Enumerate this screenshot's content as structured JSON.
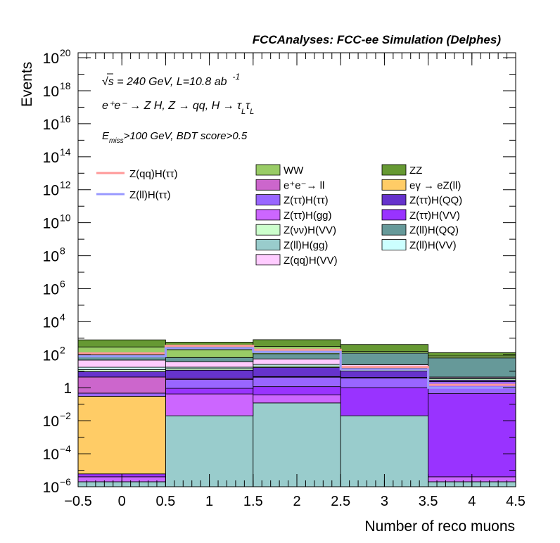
{
  "chart_data": {
    "type": "bar",
    "title": "FCCAnalyses: FCC-ee Simulation (Delphes)",
    "xlabel": "Number of reco muons",
    "ylabel": "Events",
    "xlim": [
      -0.5,
      4.5
    ],
    "ylim": [
      1e-06,
      2e+20
    ],
    "log_y": true,
    "grid": false,
    "bins": [
      -0.5,
      0.5,
      1.5,
      2.5,
      3.5,
      4.5
    ],
    "x_ticks": [
      "−0.5",
      "0",
      "0.5",
      "1",
      "1.5",
      "2",
      "2.5",
      "3",
      "3.5",
      "4",
      "4.5"
    ],
    "y_ticks": [
      {
        "base": "10",
        "exp": "−6",
        "value": 1e-06
      },
      {
        "base": "10",
        "exp": "−4",
        "value": 0.0001
      },
      {
        "base": "10",
        "exp": "−2",
        "value": 0.01
      },
      {
        "base": "1",
        "exp": "",
        "value": 1
      },
      {
        "base": "10",
        "exp": "2",
        "value": 100.0
      },
      {
        "base": "10",
        "exp": "4",
        "value": 10000.0
      },
      {
        "base": "10",
        "exp": "6",
        "value": 1000000.0
      },
      {
        "base": "10",
        "exp": "8",
        "value": 100000000.0
      },
      {
        "base": "10",
        "exp": "10",
        "value": 10000000000.0
      },
      {
        "base": "10",
        "exp": "12",
        "value": 1000000000000.0
      },
      {
        "base": "10",
        "exp": "14",
        "value": 100000000000000.0
      },
      {
        "base": "10",
        "exp": "16",
        "value": 1e+16
      },
      {
        "base": "10",
        "exp": "18",
        "value": 1e+18
      },
      {
        "base": "10",
        "exp": "20",
        "value": 1e+20
      }
    ],
    "annotations": {
      "energy": "√s = 240 GeV, L=10.8 ab",
      "energy_sup": "-1",
      "process_main": "e⁺e⁻ → Z H, Z → qq, H → τ",
      "process_sub_l": "L",
      "cut_e": "E",
      "cut_sub": "miss",
      "cut_rest": ">100 GeV, BDT score>0.5"
    },
    "stack_order_bottom_to_top": [
      "Z(ll)H(gg)",
      "Z(ττ)H(gg)",
      "Z(ττ)H(VV)",
      "eγ → eZ(ll)",
      "Z(ττ)H(ττ)",
      "e⁺e⁻→ ll",
      "Z(ττ)H(QQ)",
      "Z(νν)H(VV)",
      "Z(ll)H(VV)",
      "Z(qq)H(VV)",
      "Z(ll)H(QQ)",
      "WW",
      "ZZ"
    ],
    "stacked_series": [
      {
        "name": "Z(ll)H(gg)",
        "color": "#99cccc",
        "values": [
          2e-06,
          0.02,
          0.12,
          0.02,
          2e-06
        ]
      },
      {
        "name": "Z(ττ)H(gg)",
        "color": "#cc66ff",
        "values": [
          2e-06,
          0.4,
          0.25,
          2e-06,
          2e-06
        ]
      },
      {
        "name": "Z(ττ)H(VV)",
        "color": "#9933ff",
        "values": [
          2e-06,
          0.5,
          0.8,
          1.0,
          0.44
        ]
      },
      {
        "name": "eγ → eZ(ll)",
        "color": "#ffcc66",
        "values": [
          0.3,
          2e-06,
          2e-06,
          2e-06,
          2e-06
        ]
      },
      {
        "name": "Z(ττ)H(ττ)",
        "color": "#9966ff",
        "values": [
          0.17,
          2.3,
          3.2,
          2.9,
          1.9
        ]
      },
      {
        "name": "e⁺e⁻→ ll",
        "color": "#cc66cc",
        "values": [
          4.0,
          0.4,
          0.4,
          0.3,
          0.0
        ]
      },
      {
        "name": "Z(ττ)H(QQ)",
        "color": "#6633cc",
        "values": [
          5.0,
          8.0,
          12.0,
          6.0,
          0.5
        ]
      },
      {
        "name": "Z(νν)H(VV)",
        "color": "#ccffcc",
        "values": [
          3.0,
          3.0,
          4.0,
          2.0,
          0.6
        ]
      },
      {
        "name": "Z(ll)H(VV)",
        "color": "#ccffff",
        "values": [
          5.0,
          3.0,
          5.0,
          3.0,
          0.5
        ]
      },
      {
        "name": "Z(qq)H(VV)",
        "color": "#ffccff",
        "values": [
          30.0,
          20.0,
          30.0,
          10.0,
          0.5
        ]
      },
      {
        "name": "Z(ll)H(QQ)",
        "color": "#669999",
        "values": [
          50.0,
          30.0,
          60.0,
          100.0,
          60.0
        ]
      },
      {
        "name": "WW",
        "color": "#99cc66",
        "values": [
          200.0,
          130.0,
          200.0,
          35.0,
          20.0
        ]
      },
      {
        "name": "ZZ",
        "color": "#669933",
        "values": [
          500.0,
          380.0,
          500.0,
          260.0,
          50.0
        ]
      }
    ],
    "signal_lines": [
      {
        "name": "Z(qq)H(ττ)",
        "color": "#ff9999",
        "values": [
          120,
          350,
          200,
          18,
          1.5
        ]
      },
      {
        "name": "Z(ll)H(ττ)",
        "color": "#9999ff",
        "values": [
          80,
          250,
          150,
          13,
          1.0
        ]
      }
    ],
    "legend": {
      "placement": "upper-middle",
      "left_column": [
        "Z(qq)H(ττ)",
        "Z(ll)H(ττ)"
      ],
      "mid_column": [
        "WW",
        "e⁺e⁻→ ll",
        "Z(ττ)H(ττ)",
        "Z(ττ)H(gg)",
        "Z(νν)H(VV)",
        "Z(ll)H(gg)",
        "Z(qq)H(VV)"
      ],
      "right_column": [
        "ZZ",
        "eγ → eZ(ll)",
        "Z(ττ)H(QQ)",
        "Z(ττ)H(VV)",
        "Z(ll)H(QQ)",
        "Z(ll)H(VV)"
      ]
    }
  }
}
